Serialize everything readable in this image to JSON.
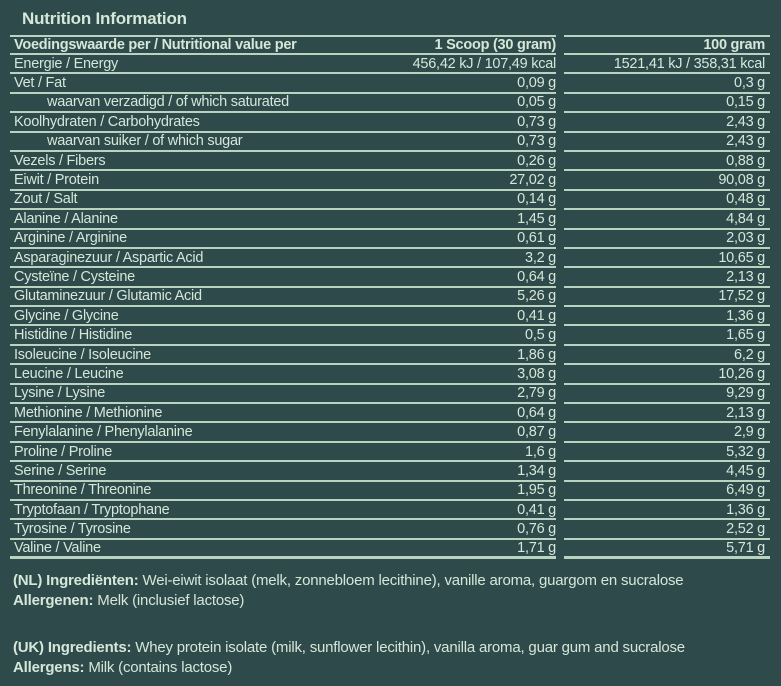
{
  "page": {
    "colors": {
      "background": "#2f4a4b",
      "text": "#d4e7d8",
      "line": "#bad3c1"
    }
  },
  "title": "Nutrition Information",
  "table": {
    "header": {
      "label": "Voedingswaarde per / Nutritional value per",
      "per_scoop": "1 Scoop (30 gram)",
      "per_100g": "100 gram"
    },
    "rows": [
      {
        "label": "Energie / Energy",
        "indent": false,
        "per_scoop": "456,42 kJ / 107,49 kcal",
        "per_100g": "1521,41 kJ / 358,31 kcal"
      },
      {
        "label": "Vet / Fat",
        "indent": false,
        "per_scoop": "0,09 g",
        "per_100g": "0,3 g"
      },
      {
        "label": "waarvan verzadigd / of which saturated",
        "indent": true,
        "per_scoop": "0,05 g",
        "per_100g": "0,15 g"
      },
      {
        "label": "Koolhydraten / Carbohydrates",
        "indent": false,
        "per_scoop": "0,73 g",
        "per_100g": "2,43 g"
      },
      {
        "label": "waarvan suiker / of which sugar",
        "indent": true,
        "per_scoop": "0,73 g",
        "per_100g": "2,43 g"
      },
      {
        "label": "Vezels / Fibers",
        "indent": false,
        "per_scoop": "0,26 g",
        "per_100g": "0,88 g"
      },
      {
        "label": "Eiwit / Protein",
        "indent": false,
        "per_scoop": "27,02 g",
        "per_100g": "90,08 g"
      },
      {
        "label": "Zout / Salt",
        "indent": false,
        "per_scoop": "0,14 g",
        "per_100g": "0,48 g"
      },
      {
        "label": "Alanine / Alanine",
        "indent": false,
        "per_scoop": "1,45 g",
        "per_100g": "4,84 g"
      },
      {
        "label": "Arginine / Arginine",
        "indent": false,
        "per_scoop": "0,61 g",
        "per_100g": "2,03 g"
      },
      {
        "label": "Asparaginezuur / Aspartic Acid",
        "indent": false,
        "per_scoop": "3,2 g",
        "per_100g": "10,65 g"
      },
      {
        "label": "Cysteïne / Cysteine",
        "indent": false,
        "per_scoop": "0,64 g",
        "per_100g": "2,13 g"
      },
      {
        "label": "Glutaminezuur / Glutamic Acid",
        "indent": false,
        "per_scoop": "5,26 g",
        "per_100g": "17,52 g"
      },
      {
        "label": "Glycine / Glycine",
        "indent": false,
        "per_scoop": "0,41 g",
        "per_100g": "1,36 g"
      },
      {
        "label": "Histidine / Histidine",
        "indent": false,
        "per_scoop": "0,5 g",
        "per_100g": "1,65 g"
      },
      {
        "label": "Isoleucine / Isoleucine",
        "indent": false,
        "per_scoop": "1,86 g",
        "per_100g": "6,2 g"
      },
      {
        "label": "Leucine / Leucine",
        "indent": false,
        "per_scoop": "3,08 g",
        "per_100g": "10,26 g"
      },
      {
        "label": "Lysine / Lysine",
        "indent": false,
        "per_scoop": "2,79 g",
        "per_100g": "9,29 g"
      },
      {
        "label": "Methionine / Methionine",
        "indent": false,
        "per_scoop": "0,64 g",
        "per_100g": "2,13 g"
      },
      {
        "label": "Fenylalanine / Phenylalanine",
        "indent": false,
        "per_scoop": "0,87 g",
        "per_100g": "2,9 g"
      },
      {
        "label": "Proline / Proline",
        "indent": false,
        "per_scoop": "1,6 g",
        "per_100g": "5,32 g"
      },
      {
        "label": "Serine / Serine",
        "indent": false,
        "per_scoop": "1,34 g",
        "per_100g": "4,45 g"
      },
      {
        "label": "Threonine / Threonine",
        "indent": false,
        "per_scoop": "1,95 g",
        "per_100g": "6,49 g"
      },
      {
        "label": "Tryptofaan / Tryptophane",
        "indent": false,
        "per_scoop": "0,41 g",
        "per_100g": "1,36 g"
      },
      {
        "label": "Tyrosine / Tyrosine",
        "indent": false,
        "per_scoop": "0,76 g",
        "per_100g": "2,52 g"
      },
      {
        "label": "Valine / Valine",
        "indent": false,
        "per_scoop": "1,71 g",
        "per_100g": "5,71 g"
      }
    ]
  },
  "footer": {
    "nl": {
      "ingredients_label": "(NL) Ingrediënten:",
      "ingredients": "Wei-eiwit isolaat (melk, zonnebloem lecithine), vanille aroma, guargom en sucralose",
      "allergens_label": "Allergenen:",
      "allergens": "Melk (inclusief lactose)"
    },
    "uk": {
      "ingredients_label": "(UK) Ingredients:",
      "ingredients": "Whey protein isolate (milk, sunflower lecithin), vanilla aroma, guar gum and sucralose",
      "allergens_label": "Allergens:",
      "allergens": "Milk (contains lactose)"
    }
  }
}
